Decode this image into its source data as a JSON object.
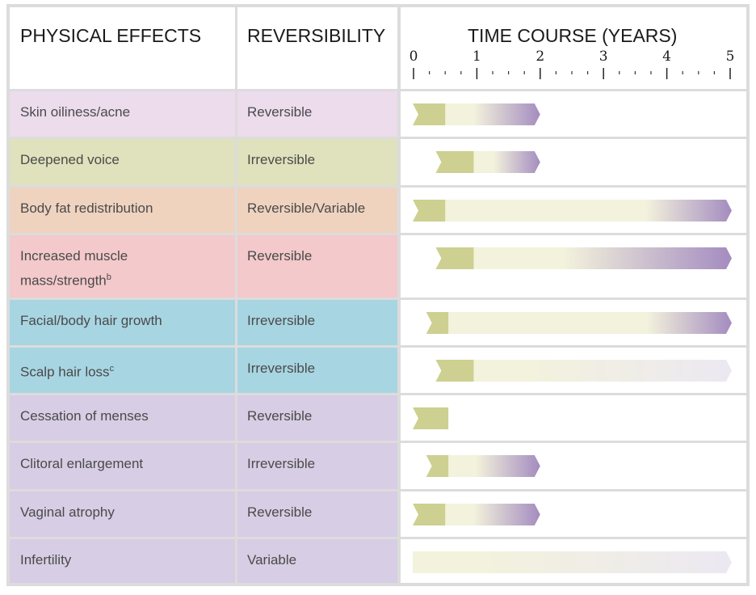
{
  "header": {
    "col1": "PHYSICAL EFFECTS",
    "col2": "REVERSIBILITY",
    "col3": "TIME COURSE (YEARS)"
  },
  "colors": {
    "start_segment": "#cdd090",
    "mid": "#f3f2dc",
    "end": "#a48cc0",
    "faint_end": "#ece8f2"
  },
  "rows": [
    {
      "effect": "Skin oiliness/acne",
      "reversibility": "Reversible",
      "bg": "#ecdcec"
    },
    {
      "effect": "Deepened voice",
      "reversibility": "Irreversible",
      "bg": "#dfe2bc"
    },
    {
      "effect": "Body fat redistribution",
      "reversibility": "Reversible/Variable",
      "bg": "#efd3bf"
    },
    {
      "effect": "Increased muscle mass/strength",
      "sup": "b",
      "reversibility": "Reversible",
      "bg": "#f3c9cb"
    },
    {
      "effect": "Facial/body hair growth",
      "reversibility": "Irreversible",
      "bg": "#a8d5e2"
    },
    {
      "effect": "Scalp hair loss",
      "sup": "c",
      "reversibility": "Irreversible",
      "bg": "#a8d5e2"
    },
    {
      "effect": "Cessation of menses",
      "reversibility": "Reversible",
      "bg": "#d7cde4"
    },
    {
      "effect": "Clitoral enlargement",
      "reversibility": "Irreversible",
      "bg": "#d7cde4"
    },
    {
      "effect": "Vaginal atrophy",
      "reversibility": "Reversible",
      "bg": "#d7cde4"
    },
    {
      "effect": "Infertility",
      "reversibility": "Variable",
      "bg": "#d7cde4"
    }
  ],
  "chart_data": {
    "type": "bar",
    "title": "TIME COURSE (YEARS)",
    "xlabel": "Years",
    "xlim": [
      0,
      5
    ],
    "ticks": [
      "0",
      "1",
      "2",
      "3",
      "4",
      "5"
    ],
    "categories": [
      "Skin oiliness/acne",
      "Deepened voice",
      "Body fat redistribution",
      "Increased muscle mass/strength",
      "Facial/body hair growth",
      "Scalp hair loss",
      "Cessation of menses",
      "Clitoral enlargement",
      "Vaginal atrophy",
      "Infertility"
    ],
    "bars": [
      {
        "onset": 0.0,
        "onset_end": 0.5,
        "max_effect": 2.0,
        "fade": "purple"
      },
      {
        "onset": 0.35,
        "onset_end": 0.95,
        "max_effect": 2.0,
        "fade": "purple"
      },
      {
        "onset": 0.0,
        "onset_end": 0.5,
        "max_effect": 5.0,
        "fade": "purple"
      },
      {
        "onset": 0.35,
        "onset_end": 0.95,
        "max_effect": 5.0,
        "fade": "purple"
      },
      {
        "onset": 0.2,
        "onset_end": 0.55,
        "max_effect": 5.0,
        "fade": "purple"
      },
      {
        "onset": 0.35,
        "onset_end": 0.95,
        "max_effect": 5.0,
        "fade": "faint"
      },
      {
        "onset": 0.0,
        "onset_end": 0.55,
        "max_effect": 0.55,
        "fade": "none"
      },
      {
        "onset": 0.2,
        "onset_end": 0.55,
        "max_effect": 2.0,
        "fade": "purple"
      },
      {
        "onset": 0.0,
        "onset_end": 0.5,
        "max_effect": 2.0,
        "fade": "purple"
      },
      {
        "onset": 0.0,
        "onset_end": 0.0,
        "max_effect": 5.0,
        "fade": "faint"
      }
    ]
  }
}
